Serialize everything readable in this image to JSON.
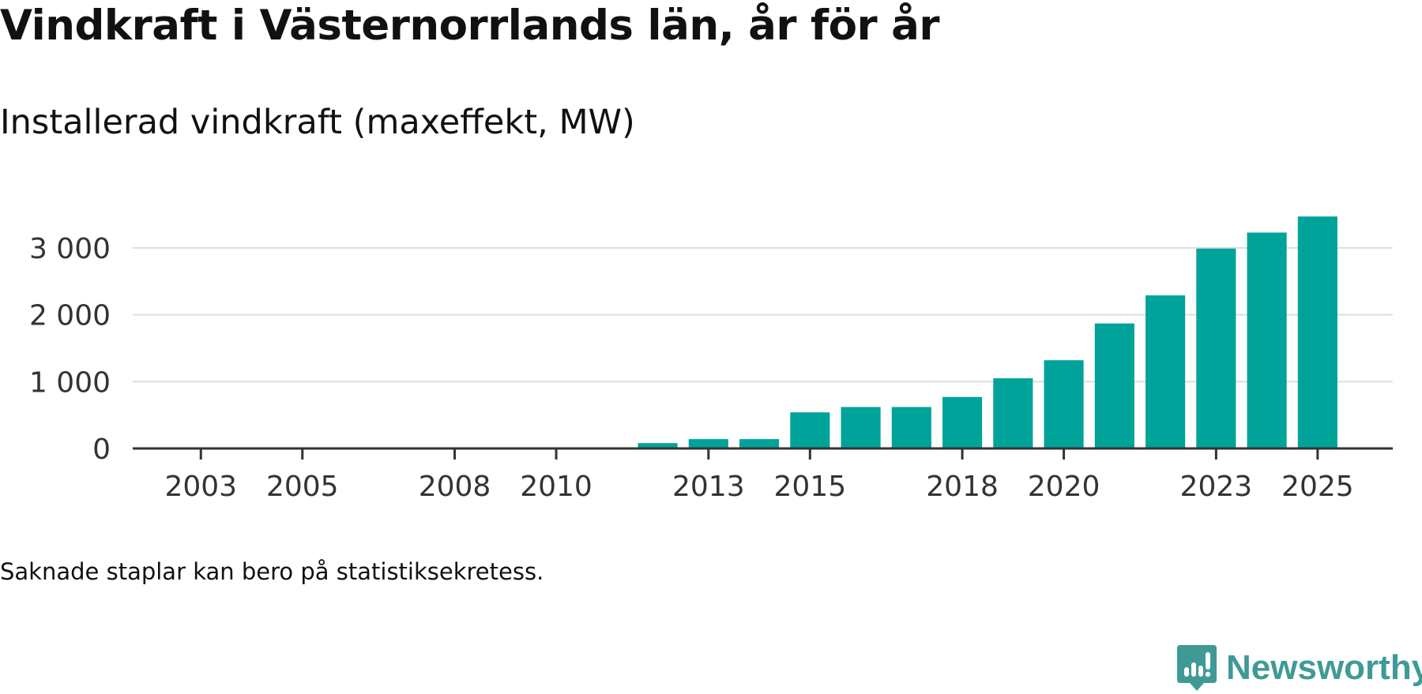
{
  "header": {
    "title": "Vindkraft i Västernorrlands län, år för år",
    "subtitle": "Installerad vindkraft (maxeffekt, MW)"
  },
  "footer": {
    "note": "Saknade staplar kan bero på statistiksekretess.",
    "brand": "Newsworthy"
  },
  "colors": {
    "bar": "#00a39a",
    "grid": "#dddddd",
    "axis": "#333333",
    "brand": "#3f9a96"
  },
  "chart_data": {
    "type": "bar",
    "title": "Vindkraft i Västernorrlands län, år för år",
    "subtitle": "Installerad vindkraft (maxeffekt, MW)",
    "xlabel": "",
    "ylabel": "",
    "xlim": [
      2001.5,
      2026.5
    ],
    "ylim": [
      0,
      3300
    ],
    "yticks": [
      0,
      1000,
      2000,
      3000
    ],
    "ytick_labels": [
      "0",
      "1 000",
      "2 000",
      "3 000"
    ],
    "xticks": [
      2003,
      2005,
      2008,
      2010,
      2013,
      2015,
      2018,
      2020,
      2023,
      2025
    ],
    "xtick_labels": [
      "2003",
      "2005",
      "2008",
      "2010",
      "2013",
      "2015",
      "2018",
      "2020",
      "2023",
      "2025"
    ],
    "grid": true,
    "series": [
      {
        "name": "Installerad vindkraft (MW)",
        "x": [
          2012,
          2013,
          2014,
          2015,
          2016,
          2017,
          2018,
          2019,
          2020,
          2021,
          2022,
          2023,
          2024,
          2025
        ],
        "values": [
          80,
          140,
          140,
          540,
          620,
          620,
          770,
          1050,
          1320,
          1870,
          2290,
          2990,
          3230,
          3470
        ]
      }
    ]
  }
}
